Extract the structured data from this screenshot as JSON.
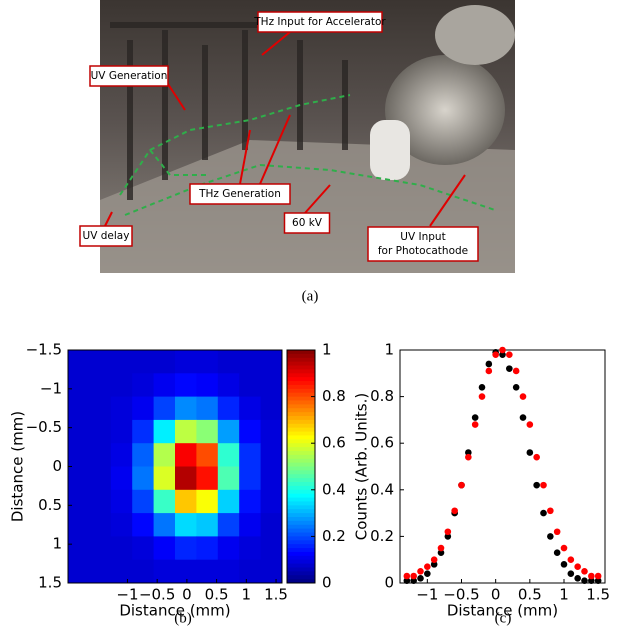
{
  "photo": {
    "labels": [
      [
        "THz Input for Accelerator"
      ],
      [
        "UV Generation"
      ],
      [
        "THz Generation"
      ],
      [
        "UV delay"
      ],
      [
        "60 kV"
      ],
      [
        "UV Input",
        "for Photocathode"
      ]
    ]
  },
  "captions": [
    "(a)",
    "(b)",
    "(c)"
  ],
  "chart_data": [
    {
      "type": "heatmap",
      "xlabel": "Distance (mm)",
      "ylabel": "Distance (mm)",
      "xlim": [
        -2,
        1.6
      ],
      "ylim": [
        -1.5,
        1.5
      ],
      "y_reversed": true,
      "xticks": [
        {
          "value": -1,
          "label": "−1"
        },
        {
          "value": -0.5,
          "label": "−0.5"
        },
        0,
        0.5,
        1,
        1.5
      ],
      "yticks": [
        {
          "value": -1.5,
          "label": "−1.5"
        },
        {
          "value": -1,
          "label": "−1"
        },
        {
          "value": -0.5,
          "label": "−0.5"
        },
        0,
        0.5,
        1,
        1.5
      ],
      "colormap": "jet",
      "clim": [
        0,
        1
      ],
      "cticks": [
        0,
        0.2,
        0.4,
        0.6,
        0.8,
        1
      ],
      "x": [
        -1.82,
        -1.46,
        -1.1,
        -0.74,
        -0.38,
        -0.02,
        0.34,
        0.7,
        1.06,
        1.42
      ],
      "y": [
        -1.35,
        -1.05,
        -0.75,
        -0.45,
        -0.15,
        0.15,
        0.45,
        0.75,
        1.05,
        1.35
      ],
      "z": [
        [
          0.08,
          0.08,
          0.08,
          0.08,
          0.08,
          0.09,
          0.09,
          0.08,
          0.08,
          0.08
        ],
        [
          0.08,
          0.08,
          0.08,
          0.09,
          0.11,
          0.13,
          0.12,
          0.1,
          0.08,
          0.08
        ],
        [
          0.08,
          0.08,
          0.09,
          0.11,
          0.19,
          0.26,
          0.24,
          0.16,
          0.1,
          0.08
        ],
        [
          0.08,
          0.08,
          0.09,
          0.17,
          0.36,
          0.56,
          0.51,
          0.28,
          0.13,
          0.09
        ],
        [
          0.08,
          0.08,
          0.1,
          0.22,
          0.55,
          0.88,
          0.8,
          0.42,
          0.17,
          0.09
        ],
        [
          0.08,
          0.08,
          0.11,
          0.24,
          0.59,
          0.95,
          0.86,
          0.45,
          0.17,
          0.09
        ],
        [
          0.08,
          0.08,
          0.1,
          0.19,
          0.43,
          0.68,
          0.62,
          0.33,
          0.14,
          0.09
        ],
        [
          0.08,
          0.08,
          0.09,
          0.13,
          0.24,
          0.34,
          0.32,
          0.19,
          0.11,
          0.08
        ],
        [
          0.08,
          0.08,
          0.08,
          0.09,
          0.12,
          0.16,
          0.15,
          0.11,
          0.09,
          0.08
        ],
        [
          0.08,
          0.08,
          0.08,
          0.08,
          0.09,
          0.09,
          0.09,
          0.09,
          0.08,
          0.08
        ]
      ]
    },
    {
      "type": "scatter",
      "xlabel": "Distance (mm)",
      "ylabel": "Counts (Arb. Units.)",
      "xlim": [
        -1.4,
        1.6
      ],
      "ylim": [
        0,
        1
      ],
      "xticks": [
        {
          "value": -1,
          "label": "−1"
        },
        {
          "value": -0.5,
          "label": "−0.5"
        },
        0,
        0.5,
        1,
        1.5
      ],
      "yticks": [
        0,
        0.2,
        0.4,
        0.6,
        0.8,
        1
      ],
      "x": [
        -1.3,
        -1.2,
        -1.1,
        -1.0,
        -0.9,
        -0.8,
        -0.7,
        -0.6,
        -0.5,
        -0.4,
        -0.3,
        -0.2,
        -0.1,
        0,
        0.1,
        0.2,
        0.3,
        0.4,
        0.5,
        0.6,
        0.7,
        0.8,
        0.9,
        1.0,
        1.1,
        1.2,
        1.3,
        1.4,
        1.5
      ],
      "series": [
        {
          "color": "#000000",
          "values": [
            0.01,
            0.01,
            0.02,
            0.04,
            0.08,
            0.13,
            0.2,
            0.3,
            0.42,
            0.56,
            0.71,
            0.84,
            0.94,
            0.99,
            0.98,
            0.92,
            0.84,
            0.71,
            0.56,
            0.42,
            0.3,
            0.2,
            0.13,
            0.08,
            0.04,
            0.02,
            0.01,
            0.01,
            0.01
          ]
        },
        {
          "color": "#ff0000",
          "values": [
            0.03,
            0.03,
            0.05,
            0.07,
            0.1,
            0.15,
            0.22,
            0.31,
            0.42,
            0.54,
            0.68,
            0.8,
            0.91,
            0.98,
            1.0,
            0.98,
            0.91,
            0.8,
            0.68,
            0.54,
            0.42,
            0.31,
            0.22,
            0.15,
            0.1,
            0.07,
            0.05,
            0.03,
            0.03
          ]
        }
      ]
    }
  ]
}
